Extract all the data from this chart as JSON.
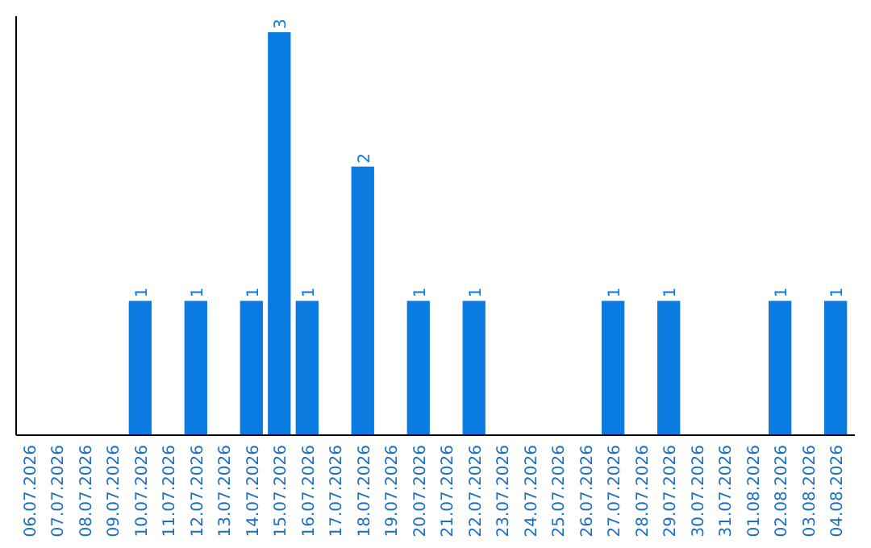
{
  "chart_data": {
    "type": "bar",
    "categories": [
      "06.07.2026",
      "07.07.2026",
      "08.07.2026",
      "09.07.2026",
      "10.07.2026",
      "11.07.2026",
      "12.07.2026",
      "13.07.2026",
      "14.07.2026",
      "15.07.2026",
      "16.07.2026",
      "17.07.2026",
      "18.07.2026",
      "19.07.2026",
      "20.07.2026",
      "21.07.2026",
      "22.07.2026",
      "23.07.2026",
      "24.07.2026",
      "25.07.2026",
      "26.07.2026",
      "27.07.2026",
      "28.07.2026",
      "29.07.2026",
      "30.07.2026",
      "31.07.2026",
      "01.08.2026",
      "02.08.2026",
      "03.08.2026",
      "04.08.2026"
    ],
    "values": [
      0,
      0,
      0,
      0,
      1,
      0,
      1,
      0,
      1,
      3,
      1,
      0,
      2,
      0,
      1,
      0,
      1,
      0,
      0,
      0,
      0,
      1,
      0,
      1,
      0,
      0,
      0,
      1,
      0,
      1
    ],
    "value_labels": [
      null,
      null,
      null,
      null,
      "1",
      null,
      "1",
      null,
      "1",
      "3",
      "1",
      null,
      "2",
      null,
      "1",
      null,
      "1",
      null,
      null,
      null,
      null,
      "1",
      null,
      "1",
      null,
      null,
      null,
      "1",
      null,
      "1"
    ],
    "color": "#0a7be0"
  }
}
